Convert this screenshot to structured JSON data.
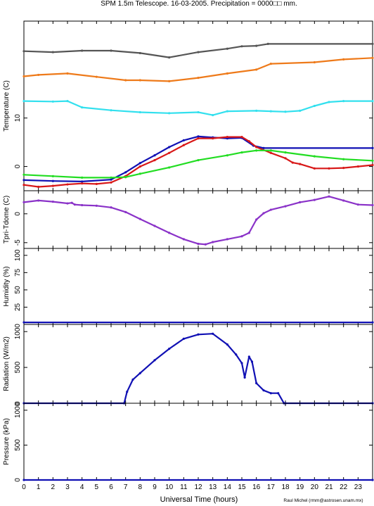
{
  "title": "SPM 1.5m Telescope. 16-03-2005. Precipitation = 0000□□ mm.",
  "credit": "Raul Michel (rmm@astrosen.unam.mx)",
  "colors": {
    "dark_gray": "#555555",
    "orange": "#ee7a1a",
    "cyan": "#33e0ee",
    "blue": "#1010b4",
    "red": "#d81818",
    "green": "#22dd22",
    "purple": "#8a32c8"
  },
  "chart_data": [
    {
      "type": "line",
      "ylabel": "Temperature (C)",
      "xlabel": "Universal Time (hours)",
      "xlim": [
        0,
        24
      ],
      "ylim": [
        -5,
        30
      ],
      "yticks": [
        0,
        10
      ],
      "xticks": [
        0,
        1,
        2,
        3,
        4,
        5,
        6,
        7,
        8,
        9,
        10,
        11,
        12,
        13,
        14,
        15,
        16,
        17,
        18,
        19,
        20,
        21,
        22,
        23
      ],
      "series": [
        {
          "color_key": "dark_gray",
          "x": [
            0,
            2,
            4,
            6,
            8,
            10,
            12,
            14,
            15,
            16,
            16.8,
            24
          ],
          "y": [
            23.8,
            23.6,
            23.9,
            23.9,
            23.4,
            22.5,
            23.6,
            24.3,
            24.8,
            24.9,
            25.3,
            25.3
          ]
        },
        {
          "color_key": "orange",
          "x": [
            0,
            1,
            3,
            5,
            7,
            8,
            10,
            12,
            14,
            16,
            17,
            20,
            22,
            24
          ],
          "y": [
            18.6,
            18.9,
            19.2,
            18.5,
            17.8,
            17.8,
            17.6,
            18.3,
            19.2,
            20.0,
            21.2,
            21.5,
            22.1,
            22.4
          ]
        },
        {
          "color_key": "cyan",
          "x": [
            0,
            2,
            3,
            4,
            6,
            8,
            10,
            12,
            13,
            14,
            16,
            17,
            18,
            19,
            20,
            21,
            22,
            24
          ],
          "y": [
            13.5,
            13.4,
            13.5,
            12.2,
            11.6,
            11.2,
            11.0,
            11.2,
            10.6,
            11.4,
            11.5,
            11.4,
            11.3,
            11.5,
            12.5,
            13.3,
            13.5,
            13.5
          ]
        },
        {
          "color_key": "blue",
          "x": [
            0,
            2,
            4,
            6,
            7,
            8,
            9,
            10,
            11,
            12,
            13,
            14,
            15,
            15.8,
            16.5,
            24
          ],
          "y": [
            -2.8,
            -3.0,
            -3.1,
            -2.7,
            -1.2,
            0.7,
            2.3,
            4.0,
            5.4,
            6.2,
            6.0,
            5.8,
            5.9,
            4.3,
            3.8,
            3.8
          ]
        },
        {
          "color_key": "red",
          "x": [
            0,
            1,
            2,
            3,
            4,
            5,
            6,
            7,
            8,
            9,
            10,
            11,
            12,
            13,
            14,
            15,
            15.5,
            16,
            17,
            18,
            18.5,
            19,
            20,
            21,
            22,
            23,
            24
          ],
          "y": [
            -3.8,
            -4.2,
            -4.0,
            -3.7,
            -3.5,
            -3.6,
            -3.3,
            -2.0,
            0.0,
            1.3,
            2.8,
            4.4,
            5.8,
            5.8,
            6.1,
            6.1,
            5.2,
            4.0,
            2.8,
            1.7,
            0.8,
            0.5,
            -0.4,
            -0.4,
            -0.3,
            0.0,
            0.3
          ]
        },
        {
          "color_key": "green",
          "x": [
            0,
            2,
            4,
            6,
            7,
            8,
            10,
            12,
            14,
            15,
            16,
            17,
            18,
            20,
            22,
            24
          ],
          "y": [
            -1.7,
            -2.0,
            -2.3,
            -2.3,
            -2.2,
            -1.5,
            -0.2,
            1.3,
            2.3,
            2.9,
            3.3,
            3.3,
            2.9,
            2.1,
            1.5,
            1.2
          ]
        }
      ]
    },
    {
      "type": "scatter",
      "ylabel": "Tpri-Tdome (C)",
      "xlim": [
        0,
        24
      ],
      "ylim": [
        -6,
        4
      ],
      "yticks": [
        -5,
        0
      ],
      "series": [
        {
          "color_key": "purple",
          "x": [
            0,
            1,
            2,
            3,
            3.3,
            3.5,
            4,
            5,
            6,
            7,
            8,
            9,
            10,
            11,
            12,
            12.5,
            13,
            14,
            15,
            15.5,
            16,
            16.5,
            17,
            18,
            19,
            20,
            21,
            22,
            23,
            24
          ],
          "y": [
            2.0,
            2.3,
            2.1,
            1.8,
            1.9,
            1.6,
            1.5,
            1.4,
            1.1,
            0.3,
            -0.9,
            -2.1,
            -3.3,
            -4.4,
            -5.2,
            -5.3,
            -4.9,
            -4.4,
            -3.9,
            -3.3,
            -1.0,
            0.1,
            0.7,
            1.3,
            2.0,
            2.4,
            3.0,
            2.3,
            1.6,
            1.5
          ]
        }
      ]
    },
    {
      "type": "line",
      "ylabel": "Humidity (%)",
      "xlim": [
        0,
        24
      ],
      "ylim": [
        0,
        110
      ],
      "yticks": [
        25,
        50,
        75,
        100
      ],
      "series": [
        {
          "color_key": "blue",
          "x": [
            0,
            24
          ],
          "y": [
            3,
            3
          ]
        }
      ]
    },
    {
      "type": "line",
      "ylabel": "Radiation (W/m2)",
      "xlim": [
        0,
        24
      ],
      "ylim": [
        0,
        1100
      ],
      "yticks": [
        0,
        500,
        1000
      ],
      "series": [
        {
          "color_key": "blue",
          "x": [
            0,
            6.9,
            7.1,
            7.5,
            8,
            9,
            10,
            11,
            12,
            13,
            14,
            14.6,
            15,
            15.2,
            15.5,
            15.7,
            16,
            16.5,
            17,
            17.5,
            17.9,
            18,
            24
          ],
          "y": [
            0,
            0,
            160,
            330,
            420,
            600,
            760,
            900,
            960,
            970,
            820,
            680,
            560,
            360,
            650,
            580,
            280,
            180,
            140,
            140,
            0,
            0,
            0
          ]
        }
      ]
    },
    {
      "type": "line",
      "ylabel": "Pressure (kPa)",
      "xlim": [
        0,
        24
      ],
      "ylim": [
        0,
        1100
      ],
      "yticks": [
        0,
        500,
        1000
      ],
      "series": [
        {
          "color_key": "blue",
          "x": [
            0,
            24
          ],
          "y": [
            0,
            0
          ]
        }
      ]
    }
  ]
}
